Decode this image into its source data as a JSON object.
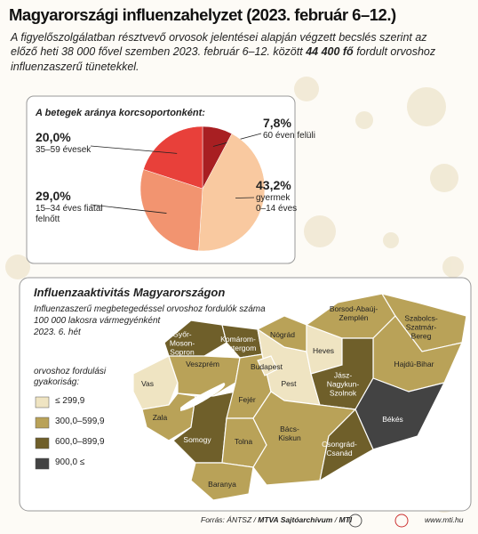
{
  "title": "Magyarországi influenzahelyzet (2023. február 6–12.)",
  "intro": {
    "before": "A figyelőszolgálatban résztvevő orvosok jelentései alapján végzett becslés szerint az előző heti 38 000 fővel szemben 2023. február 6–12. között",
    "highlight": "44 400 fő",
    "after": "fordult orvoshoz influenzaszerű tünetekkel."
  },
  "chart_data": {
    "type": "pie",
    "title": "A betegek aránya korcsoportonként:",
    "categories": [
      "60 éven felüli",
      "35–59 évesek",
      "15–34 éves fiatal felnőtt",
      "gyermek\n0–14 éves"
    ],
    "values": [
      7.8,
      20.0,
      29.0,
      43.2
    ],
    "value_labels": [
      "7,8%",
      "20,0%",
      "29,0%",
      "43,2%"
    ],
    "colors": [
      "#a81f22",
      "#e8403a",
      "#f29470",
      "#f9c9a0"
    ],
    "order": [
      0,
      3,
      2,
      1
    ]
  },
  "map": {
    "title": "Influenzaaktivitás Magyarországon",
    "subtitle": [
      "Influenzaszerű megbetegedéssel orvoshoz fordulók száma",
      "100 000 lakosra vármegyénként",
      "2023. 6. hét"
    ],
    "legend_title": "orvoshoz fordulási\ngyakoriság:",
    "legend": [
      {
        "label": "≤ 299,9",
        "color": "#efe4c2"
      },
      {
        "label": "300,0–599,9",
        "color": "#b9a258"
      },
      {
        "label": "600,0–899,9",
        "color": "#6f5f2a"
      },
      {
        "label": "900,0 ≤",
        "color": "#434343"
      }
    ],
    "counties": [
      {
        "name": "Vas",
        "color": "#efe4c2"
      },
      {
        "name": "Győr-\nMoson-\nSopron",
        "color": "#6f5f2a"
      },
      {
        "name": "Komárom-\nEsztergom",
        "color": "#6f5f2a"
      },
      {
        "name": "Veszprém",
        "color": "#b9a258"
      },
      {
        "name": "Zala",
        "color": "#b9a258"
      },
      {
        "name": "Somogy",
        "color": "#6f5f2a"
      },
      {
        "name": "Fejér",
        "color": "#b9a258"
      },
      {
        "name": "Tolna",
        "color": "#b9a258"
      },
      {
        "name": "Baranya",
        "color": "#b9a258"
      },
      {
        "name": "Pest",
        "color": "#efe4c2"
      },
      {
        "name": "Budapest",
        "color": "#efe4c2"
      },
      {
        "name": "Nógrád",
        "color": "#b9a258"
      },
      {
        "name": "Heves",
        "color": "#efe4c2"
      },
      {
        "name": "Borsod-Abaúj-\nZemplén",
        "color": "#b9a258"
      },
      {
        "name": "Szabolcs-\nSzatmár-\nBereg",
        "color": "#b9a258"
      },
      {
        "name": "Hajdú-Bihar",
        "color": "#b9a258"
      },
      {
        "name": "Jász-\nNagykun-\nSzolnok",
        "color": "#6f5f2a"
      },
      {
        "name": "Békés",
        "color": "#434343"
      },
      {
        "name": "Bács-\nKiskun",
        "color": "#b9a258"
      },
      {
        "name": "Csongrád-\nCsanád",
        "color": "#6f5f2a"
      }
    ]
  },
  "footer": {
    "source": "Forrás: ÁNTSZ /",
    "archive": "MTVA Sajtóarchívum",
    "sep": "/",
    "agency": "MTI",
    "site": "www.mti.hu"
  }
}
